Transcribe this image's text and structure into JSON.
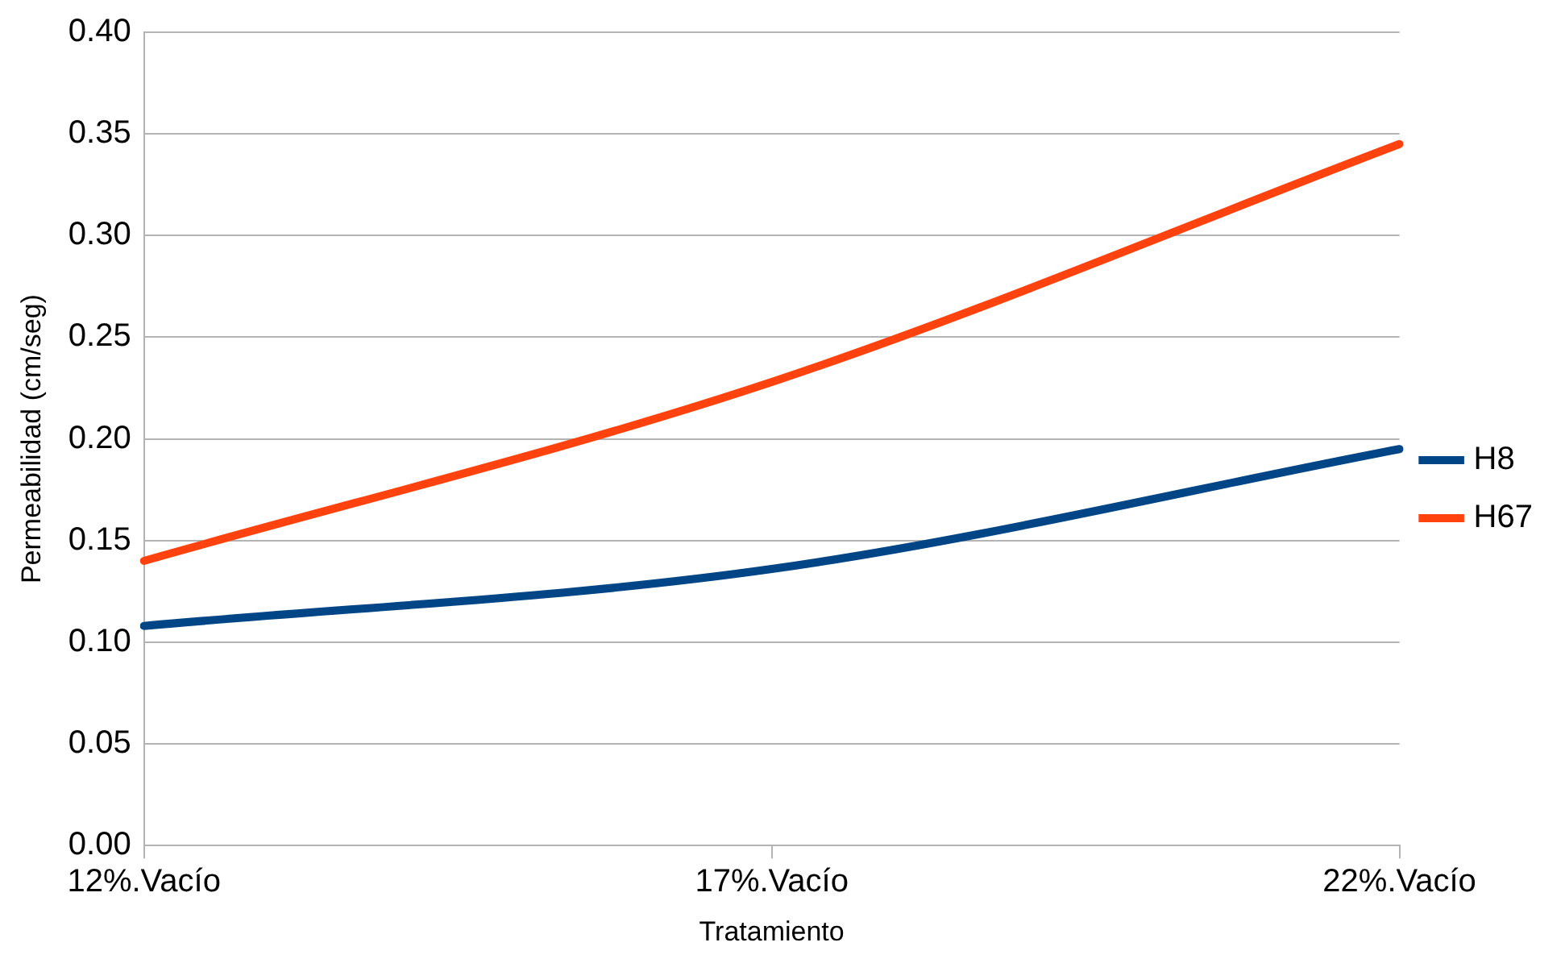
{
  "chart_data": {
    "type": "line",
    "xlabel": "Tratamiento",
    "ylabel": "Permeabilidad (cm/seg)",
    "categories": [
      "12%.Vacío",
      "17%.Vacío",
      "22%.Vacío"
    ],
    "series": [
      {
        "name": "H8",
        "color": "#004586",
        "values": [
          0.108,
          0.136,
          0.195
        ]
      },
      {
        "name": "H67",
        "color": "#ff420e",
        "values": [
          0.14,
          0.228,
          0.345
        ]
      }
    ],
    "ylim": [
      0,
      0.4
    ],
    "yticks": [
      {
        "value": 0,
        "label": "0.00"
      },
      {
        "value": 0.05,
        "label": "0.05"
      },
      {
        "value": 0.1,
        "label": "0.10"
      },
      {
        "value": 0.15,
        "label": "0.15"
      },
      {
        "value": 0.2,
        "label": "0.20"
      },
      {
        "value": 0.25,
        "label": "0.25"
      },
      {
        "value": 0.3,
        "label": "0.30"
      },
      {
        "value": 0.35,
        "label": "0.35"
      },
      {
        "value": 0.4,
        "label": "0.40"
      }
    ],
    "grid": "y",
    "legend": "right",
    "marker": "none",
    "line_style": "solid"
  }
}
